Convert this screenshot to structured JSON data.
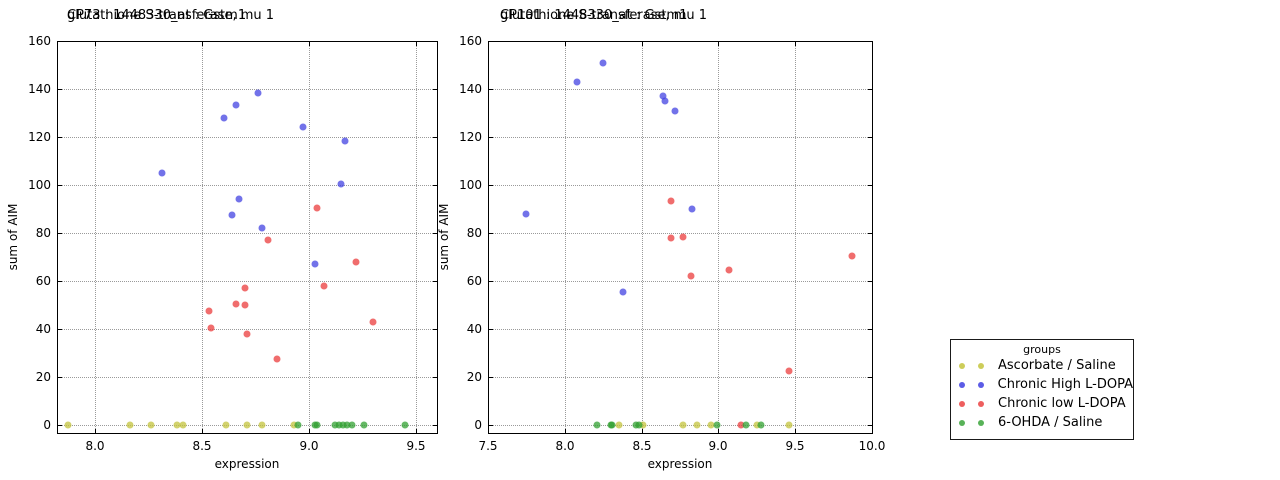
{
  "legend": {
    "title": "groups",
    "entries": [
      {
        "label": "Ascorbate / Saline",
        "color": "#cdcd5a"
      },
      {
        "label": "Chronic High L-DOPA",
        "color": "#5c5ce6"
      },
      {
        "label": "Chronic low L-DOPA",
        "color": "#ee5e5e"
      },
      {
        "label": "6-OHDA / Saline",
        "color": "#58b258"
      }
    ]
  },
  "chart_data": [
    {
      "type": "scatter",
      "title": "CP73 : 1448330_at : Gstm1",
      "subtitle": "glutathione S-transferase, mu 1",
      "xlabel": "expression",
      "ylabel": "sum of AIM",
      "xlim": [
        7.82,
        9.6
      ],
      "ylim": [
        -3.3,
        160
      ],
      "xticks": [
        8.0,
        8.5,
        9.0,
        9.5
      ],
      "yticks": [
        0,
        20,
        40,
        60,
        80,
        100,
        120,
        140,
        160
      ],
      "grid": true,
      "series": [
        {
          "name": "Ascorbate / Saline",
          "color": "rgba(195,195,60,0.75)",
          "points": [
            [
              7.87,
              0
            ],
            [
              8.16,
              0
            ],
            [
              8.26,
              0
            ],
            [
              8.38,
              0
            ],
            [
              8.41,
              0
            ],
            [
              8.61,
              0
            ],
            [
              8.71,
              0
            ],
            [
              8.78,
              0
            ],
            [
              8.93,
              0
            ]
          ]
        },
        {
          "name": "Chronic High L-DOPA",
          "color": "rgba(60,60,225,0.72)",
          "points": [
            [
              8.31,
              105
            ],
            [
              8.6,
              128
            ],
            [
              8.66,
              133.5
            ],
            [
              8.76,
              138.5
            ],
            [
              8.97,
              124
            ],
            [
              9.17,
              118.5
            ],
            [
              9.15,
              100.5
            ],
            [
              8.67,
              94
            ],
            [
              8.64,
              87.5
            ],
            [
              8.78,
              82
            ],
            [
              9.03,
              67
            ]
          ]
        },
        {
          "name": "Chronic low L-DOPA",
          "color": "rgba(235,60,60,0.75)",
          "points": [
            [
              9.04,
              90.5
            ],
            [
              8.81,
              77
            ],
            [
              9.22,
              68
            ],
            [
              9.07,
              58
            ],
            [
              8.7,
              57
            ],
            [
              8.66,
              50.5
            ],
            [
              8.7,
              50
            ],
            [
              8.53,
              47.5
            ],
            [
              8.54,
              40.5
            ],
            [
              8.71,
              38
            ],
            [
              9.3,
              43
            ],
            [
              8.85,
              27.5
            ]
          ]
        },
        {
          "name": "6-OHDA / Saline",
          "color": "rgba(50,160,50,0.75)",
          "points": [
            [
              8.95,
              0
            ],
            [
              9.03,
              0
            ],
            [
              9.04,
              0
            ],
            [
              9.12,
              0
            ],
            [
              9.14,
              0
            ],
            [
              9.16,
              0
            ],
            [
              9.18,
              0
            ],
            [
              9.2,
              0
            ],
            [
              9.26,
              0
            ],
            [
              9.45,
              0
            ]
          ]
        }
      ]
    },
    {
      "type": "scatter",
      "title": "CP101 : 1448330_at : Gstm1",
      "subtitle": "glutathione S-transferase, mu 1",
      "xlabel": "expression",
      "ylabel": "sum of AIM",
      "xlim": [
        7.5,
        10.0
      ],
      "ylim": [
        -3.3,
        160
      ],
      "xticks": [
        7.5,
        8.0,
        8.5,
        9.0,
        9.5,
        10.0
      ],
      "yticks": [
        0,
        20,
        40,
        60,
        80,
        100,
        120,
        140,
        160
      ],
      "grid": true,
      "series": [
        {
          "name": "Ascorbate / Saline",
          "color": "rgba(195,195,60,0.75)",
          "points": [
            [
              8.35,
              0
            ],
            [
              8.51,
              0
            ],
            [
              8.77,
              0
            ],
            [
              8.86,
              0
            ],
            [
              8.95,
              0
            ],
            [
              9.25,
              0
            ],
            [
              9.46,
              0
            ]
          ]
        },
        {
          "name": "Chronic High L-DOPA",
          "color": "rgba(60,60,225,0.72)",
          "points": [
            [
              7.75,
              88
            ],
            [
              8.08,
              143
            ],
            [
              8.25,
              151
            ],
            [
              8.38,
              55.5
            ],
            [
              8.64,
              137
            ],
            [
              8.65,
              135
            ],
            [
              8.72,
              131
            ],
            [
              8.83,
              90
            ]
          ]
        },
        {
          "name": "Chronic low L-DOPA",
          "color": "rgba(235,60,60,0.75)",
          "points": [
            [
              8.69,
              93.5
            ],
            [
              8.69,
              78
            ],
            [
              8.77,
              78.5
            ],
            [
              8.82,
              62
            ],
            [
              9.07,
              64.5
            ],
            [
              9.15,
              0
            ],
            [
              9.46,
              22.5
            ],
            [
              9.87,
              70.5
            ]
          ]
        },
        {
          "name": "6-OHDA / Saline",
          "color": "rgba(50,160,50,0.75)",
          "points": [
            [
              8.21,
              0
            ],
            [
              8.3,
              0
            ],
            [
              8.31,
              0
            ],
            [
              8.46,
              0
            ],
            [
              8.48,
              0
            ],
            [
              8.99,
              0
            ],
            [
              9.18,
              0
            ],
            [
              9.28,
              0
            ]
          ]
        }
      ]
    }
  ]
}
